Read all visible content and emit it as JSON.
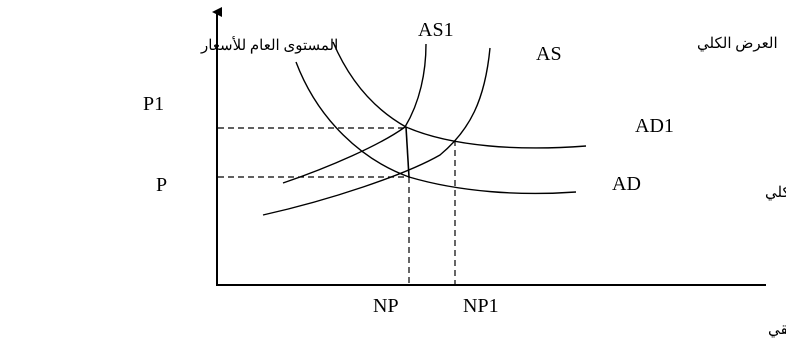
{
  "diagram": {
    "y_axis_title": "المستوى العام للأسعار",
    "x_axis_title": "الناتج القومي الحقيقي",
    "supply_title": "العرض الكلي",
    "demand_title": "الطلب الكلي",
    "curves": {
      "as1": "AS1",
      "as": "AS",
      "ad1": "AD1",
      "ad": "AD"
    },
    "price_levels": {
      "p1": "P1",
      "p": "P"
    },
    "output_levels": {
      "np": "NP",
      "np1": "NP1"
    }
  }
}
